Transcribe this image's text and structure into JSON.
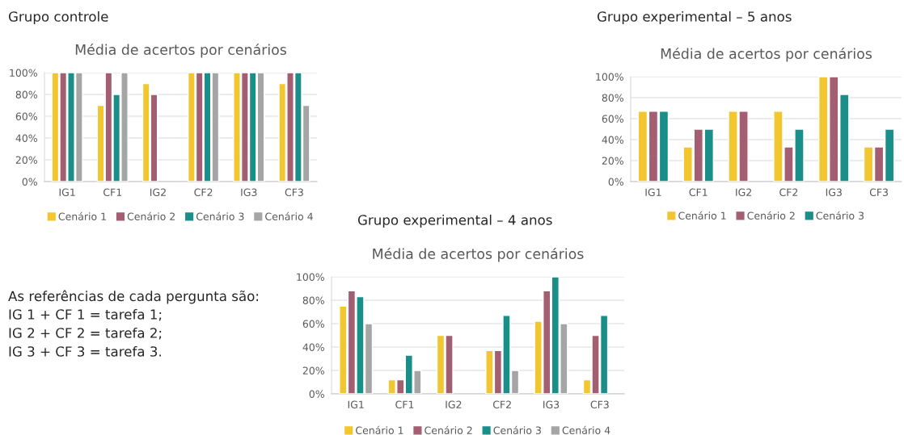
{
  "chart_data": [
    {
      "type": "bar",
      "title": "Grupo controle",
      "subtitle": "Média de acertos por cenários",
      "categories": [
        "IG1",
        "CF1",
        "IG2",
        "CF2",
        "IG3",
        "CF3"
      ],
      "series": [
        {
          "name": "Cenário 1",
          "color": "#f2c62f",
          "values": [
            100,
            70,
            90,
            100,
            100,
            90
          ]
        },
        {
          "name": "Cenário 2",
          "color": "#a35e72",
          "values": [
            100,
            100,
            80,
            100,
            100,
            100
          ]
        },
        {
          "name": "Cenário 3",
          "color": "#1a8f8a",
          "values": [
            100,
            80,
            null,
            100,
            100,
            100
          ]
        },
        {
          "name": "Cenário 4",
          "color": "#a5a5a5",
          "values": [
            100,
            100,
            null,
            100,
            100,
            70
          ]
        }
      ],
      "ylim": [
        0,
        100
      ],
      "yticks": [
        {
          "value": 0,
          "label": "0%"
        },
        {
          "value": 20,
          "label": "20%"
        },
        {
          "value": 40,
          "label": "40%"
        },
        {
          "value": 60,
          "label": "60%"
        },
        {
          "value": 80,
          "label": "80%"
        },
        {
          "value": 100,
          "label": "100%"
        }
      ],
      "grid": "y",
      "legend": "bottom"
    },
    {
      "type": "bar",
      "title": "Grupo experimental – 5 anos",
      "subtitle": "Média de acertos por cenários",
      "categories": [
        "IG1",
        "CF1",
        "IG2",
        "CF2",
        "IG3",
        "CF3"
      ],
      "series": [
        {
          "name": "Cenário 1",
          "color": "#f2c62f",
          "values": [
            67,
            33,
            67,
            67,
            100,
            33
          ]
        },
        {
          "name": "Cenário 2",
          "color": "#a35e72",
          "values": [
            67,
            50,
            67,
            33,
            100,
            33
          ]
        },
        {
          "name": "Cenário 3",
          "color": "#1a8f8a",
          "values": [
            67,
            50,
            null,
            50,
            83,
            50
          ]
        }
      ],
      "ylim": [
        0,
        100
      ],
      "yticks": [
        {
          "value": 0,
          "label": "0%"
        },
        {
          "value": 20,
          "label": "20%"
        },
        {
          "value": 40,
          "label": "40%"
        },
        {
          "value": 60,
          "label": "60%"
        },
        {
          "value": 80,
          "label": "80%"
        },
        {
          "value": 100,
          "label": "100%"
        }
      ],
      "grid": "y",
      "legend": "bottom"
    },
    {
      "type": "bar",
      "title": "Grupo experimental – 4 anos",
      "subtitle": "Média de acertos por cenários",
      "categories": [
        "IG1",
        "CF1",
        "IG2",
        "CF2",
        "IG3",
        "CF3"
      ],
      "series": [
        {
          "name": "Cenário 1",
          "color": "#f2c62f",
          "values": [
            75,
            12,
            50,
            37,
            62,
            12
          ]
        },
        {
          "name": "Cenário 2",
          "color": "#a35e72",
          "values": [
            88,
            12,
            50,
            37,
            88,
            50
          ]
        },
        {
          "name": "Cenário 3",
          "color": "#1a8f8a",
          "values": [
            83,
            33,
            null,
            67,
            100,
            67
          ]
        },
        {
          "name": "Cenário 4",
          "color": "#a5a5a5",
          "values": [
            60,
            20,
            null,
            20,
            60,
            null
          ]
        }
      ],
      "ylim": [
        0,
        100
      ],
      "yticks": [
        {
          "value": 0,
          "label": "0%"
        },
        {
          "value": 20,
          "label": "20%"
        },
        {
          "value": 40,
          "label": "40%"
        },
        {
          "value": 60,
          "label": "60%"
        },
        {
          "value": 80,
          "label": "80%"
        },
        {
          "value": 100,
          "label": "100%"
        }
      ],
      "grid": "y",
      "legend": "bottom",
      "annotations": [
        "As referências de cada pergunta são:",
        "IG 1 + CF 1 = tarefa 1;",
        "IG 2 + CF 2 = tarefa 2;",
        "IG 3 + CF 3 = tarefa 3."
      ]
    }
  ]
}
